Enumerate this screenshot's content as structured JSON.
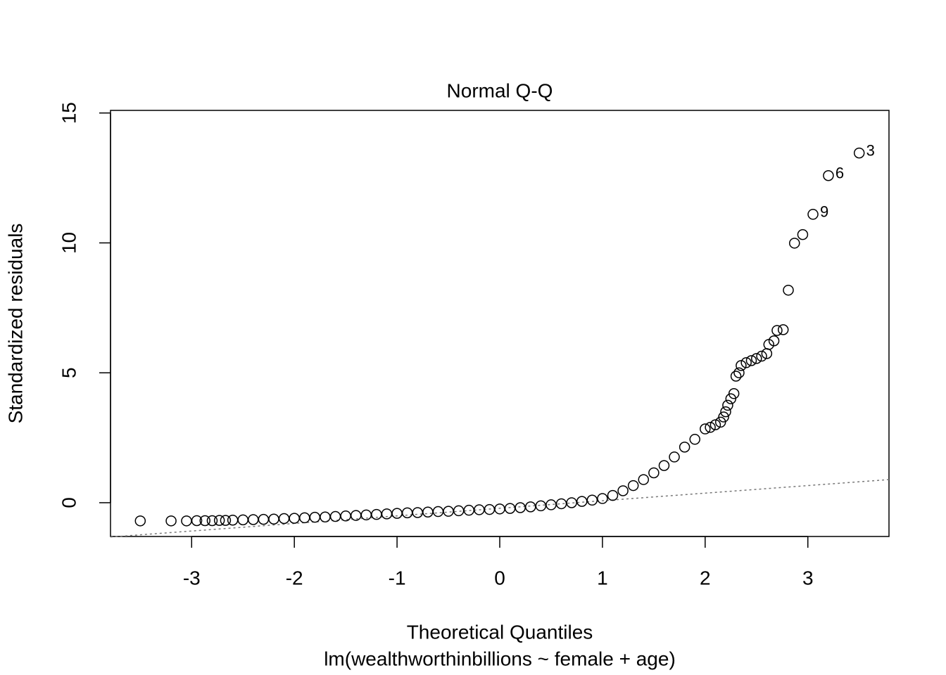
{
  "chart_data": {
    "type": "scatter",
    "title": "Normal Q-Q",
    "x_label": "Theoretical Quantiles",
    "subtitle": "lm(wealthworthinbillions ~ female + age)",
    "y_label": "Standardized residuals",
    "xlim": [
      -3.79,
      3.79
    ],
    "ylim": [
      -1.3,
      15.1
    ],
    "xticks": [
      -3,
      -2,
      -1,
      0,
      1,
      2,
      3
    ],
    "yticks": [
      0,
      5,
      10,
      15
    ],
    "color": "#000000",
    "series": [
      {
        "name": "residuals",
        "x": [
          -3.5,
          -3.2,
          -3.05,
          -2.95,
          -2.87,
          -2.8,
          -2.73,
          -2.67,
          -2.6,
          -2.5,
          -2.4,
          -2.3,
          -2.2,
          -2.1,
          -2.0,
          -1.9,
          -1.8,
          -1.7,
          -1.6,
          -1.5,
          -1.4,
          -1.3,
          -1.2,
          -1.1,
          -1.0,
          -0.9,
          -0.8,
          -0.7,
          -0.6,
          -0.5,
          -0.4,
          -0.3,
          -0.2,
          -0.1,
          0,
          0.1,
          0.2,
          0.3,
          0.4,
          0.5,
          0.6,
          0.7,
          0.8,
          0.9,
          1.0,
          1.1,
          1.2,
          1.3,
          1.4,
          1.5,
          1.6,
          1.7,
          1.8,
          1.9,
          2.0,
          2.05,
          2.1,
          2.15,
          2.18,
          2.2,
          2.22,
          2.25,
          2.28,
          2.3,
          2.33,
          2.35,
          2.4,
          2.45,
          2.5,
          2.55,
          2.6,
          2.62,
          2.67,
          2.7,
          2.76,
          2.81,
          2.87,
          2.95,
          3.05,
          3.2,
          3.5
        ],
        "values": [
          -0.7,
          -0.7,
          -0.7,
          -0.69,
          -0.69,
          -0.69,
          -0.68,
          -0.68,
          -0.67,
          -0.66,
          -0.65,
          -0.64,
          -0.63,
          -0.61,
          -0.6,
          -0.58,
          -0.56,
          -0.55,
          -0.53,
          -0.51,
          -0.49,
          -0.47,
          -0.45,
          -0.43,
          -0.41,
          -0.39,
          -0.38,
          -0.36,
          -0.34,
          -0.33,
          -0.31,
          -0.29,
          -0.27,
          -0.26,
          -0.24,
          -0.22,
          -0.19,
          -0.16,
          -0.12,
          -0.08,
          -0.04,
          0.0,
          0.05,
          0.1,
          0.16,
          0.28,
          0.46,
          0.66,
          0.89,
          1.15,
          1.43,
          1.76,
          2.14,
          2.44,
          2.84,
          2.9,
          3.0,
          3.1,
          3.3,
          3.5,
          3.75,
          4.0,
          4.2,
          4.87,
          5.0,
          5.28,
          5.39,
          5.47,
          5.55,
          5.64,
          5.74,
          6.09,
          6.23,
          6.63,
          6.66,
          8.18,
          9.99,
          10.32,
          11.1,
          12.59,
          13.46
        ]
      }
    ],
    "qq_line": {
      "x": [
        -3.79,
        3.79
      ],
      "y": [
        -1.32,
        0.89
      ]
    },
    "annotations": [
      {
        "text": "3",
        "x": 3.5,
        "y": 13.46
      },
      {
        "text": "6",
        "x": 3.2,
        "y": 12.59
      },
      {
        "text": "9",
        "x": 3.05,
        "y": 11.1
      }
    ]
  }
}
